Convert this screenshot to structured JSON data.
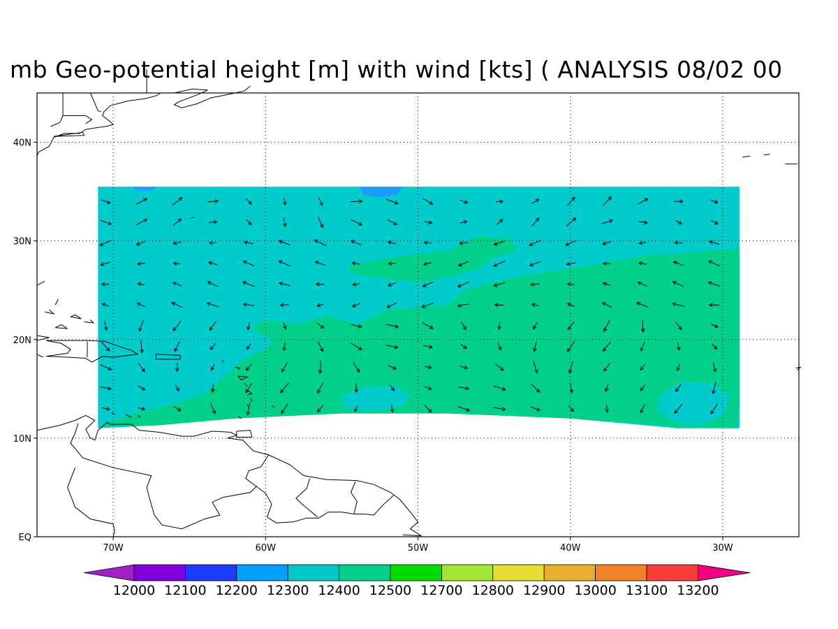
{
  "title": "mb Geo-potential height [m] with wind [kts] ( ANALYSIS 08/02 00",
  "map": {
    "lon_range": [
      -75,
      -25
    ],
    "lat_range": [
      0,
      45
    ],
    "lat_labels": [
      "EQ",
      "10N",
      "20N",
      "30N",
      "40N"
    ],
    "lon_labels": [
      "70W",
      "60W",
      "50W",
      "40W",
      "30W"
    ],
    "grid": "dotted",
    "field_colors": {
      "lt_12200": "#1e9bff",
      "12300_12400": "#00cccc",
      "12400_12500": "#00d08a"
    }
  },
  "colorbar": {
    "labels": [
      "12000",
      "12100",
      "12200",
      "12300",
      "12400",
      "12500",
      "12700",
      "12800",
      "12900",
      "13000",
      "13100",
      "13200"
    ],
    "colors": [
      "#a020c8",
      "#8200dc",
      "#1e3cff",
      "#00a0ff",
      "#00c8c8",
      "#00d08a",
      "#00dc00",
      "#a0e632",
      "#e6dc32",
      "#e6af2d",
      "#f08228",
      "#fa3c3c",
      "#f00082"
    ]
  }
}
